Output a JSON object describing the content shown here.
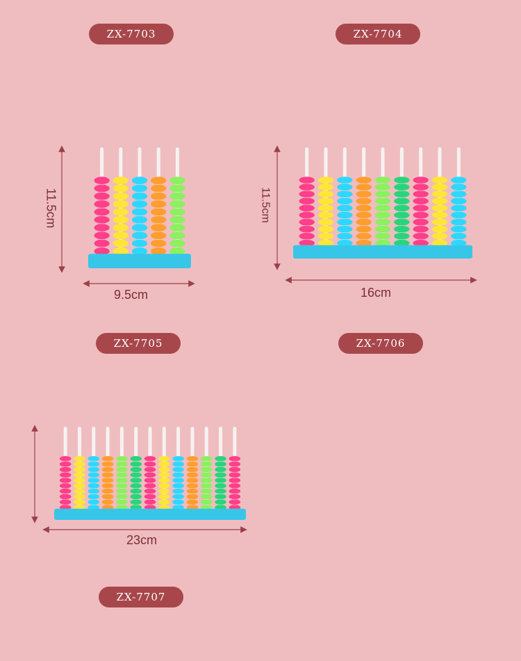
{
  "models": [
    {
      "code": "ZX-7703",
      "width_label": "9.5cm",
      "height_label": "11.5cm"
    },
    {
      "code": "ZX-7704",
      "width_label": "16cm",
      "height_label": "11.5cm"
    },
    {
      "code": "ZX-7705",
      "width_label": "23cm"
    },
    {
      "code": "ZX-7706"
    },
    {
      "code": "ZX-7707"
    }
  ],
  "colors": {
    "background": "#efbdc0",
    "pill": "#a8474b",
    "dimension_line": "#9c4048",
    "base": "#38c6e8",
    "beads": [
      "#ff3f8a",
      "#ffe536",
      "#2fd7ff",
      "#ff9d2f",
      "#8cf060",
      "#2ad47c"
    ]
  },
  "abacus_columns": [
    5,
    9,
    13
  ]
}
